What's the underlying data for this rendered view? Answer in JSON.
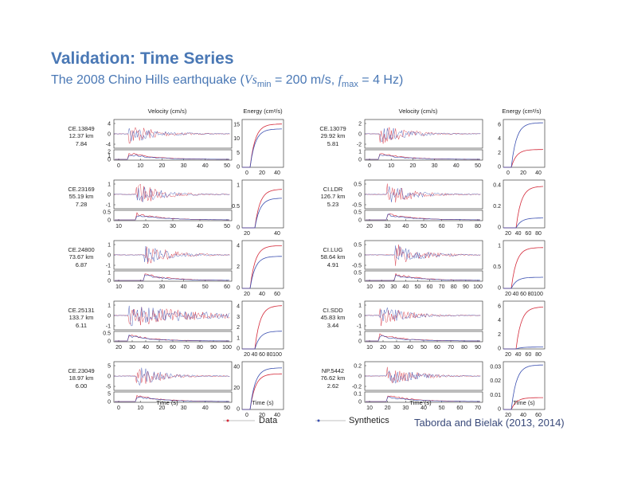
{
  "slide": {
    "title": "Validation: Time Series",
    "subtitle": {
      "prefix": "The 2008 Chino Hills earthquake (",
      "vs": "Vs",
      "vs_sub": "min",
      "vs_value": " = 200 m/s, ",
      "f": "f",
      "f_sub": "max",
      "f_value": " = 4 Hz)"
    },
    "credit": "Taborda and Bielak (2013, 2014)"
  },
  "colors": {
    "data": "#d42a3a",
    "synthetics": "#3a4fb0",
    "axis": "#222222"
  },
  "chart_data": {
    "type": "line",
    "column_headers": {
      "velocity": "Velocity (cm/s)",
      "energy": "Energy (cm²/s)"
    },
    "x_axis_label": "Time (s)",
    "legend": {
      "placement": "bottom",
      "entries": [
        "Data",
        "Synthetics"
      ]
    },
    "stations": [
      {
        "name": "CE.13849",
        "distance": "12.37 km",
        "value": "7.84",
        "vel_ticks": [
          "4",
          "0",
          "-4"
        ],
        "env_ticks": [
          "2",
          "1",
          "0"
        ],
        "time_ticks": [
          "0",
          "10",
          "20",
          "30",
          "40",
          "50"
        ],
        "xlim": [
          0,
          50
        ],
        "energy_ticks": [
          "15",
          "10",
          "5",
          "0"
        ],
        "energy_ymax": 18,
        "energy_x_ticks": [
          "0",
          "20",
          "40"
        ],
        "energy_xlim": [
          0,
          50
        ],
        "energy_data_final": 17.5,
        "energy_synth_final": 15.5
      },
      {
        "name": "CE.23169",
        "distance": "55.19 km",
        "value": "7.28",
        "vel_ticks": [
          "1",
          "0",
          "-1"
        ],
        "env_ticks": [
          "0.5",
          "0"
        ],
        "time_ticks": [
          "10",
          "20",
          "30",
          "40",
          "50"
        ],
        "xlim": [
          5,
          55
        ],
        "energy_ticks": [
          "1",
          "0.5",
          "0"
        ],
        "energy_ymax": 1.5,
        "energy_x_ticks": [
          "20",
          "40"
        ],
        "energy_xlim": [
          0,
          55
        ],
        "energy_data_final": 1.3,
        "energy_synth_final": 1.0
      },
      {
        "name": "CE.24800",
        "distance": "73.67 km",
        "value": "6.87",
        "vel_ticks": [
          "1",
          "0",
          "-1"
        ],
        "env_ticks": [
          "1",
          "0"
        ],
        "time_ticks": [
          "10",
          "20",
          "30",
          "40",
          "50",
          "60"
        ],
        "xlim": [
          10,
          70
        ],
        "energy_ticks": [
          "4",
          "2",
          "0"
        ],
        "energy_ymax": 5,
        "energy_x_ticks": [
          "20",
          "40",
          "60"
        ],
        "energy_xlim": [
          0,
          70
        ],
        "energy_data_final": 4.8,
        "energy_synth_final": 3.6
      },
      {
        "name": "CE.25131",
        "distance": "133.7 km",
        "value": "6.11",
        "vel_ticks": [
          "1",
          "0",
          "-1"
        ],
        "env_ticks": [
          "0.5",
          "0"
        ],
        "time_ticks": [
          "20",
          "30",
          "40",
          "50",
          "60",
          "70",
          "80",
          "90",
          "100"
        ],
        "xlim": [
          15,
          105
        ],
        "energy_ticks": [
          "4",
          "3",
          "2",
          "1",
          "0"
        ],
        "energy_ymax": 4,
        "energy_x_ticks": [
          "20",
          "40",
          "60",
          "80",
          "100"
        ],
        "energy_xlim": [
          0,
          105
        ],
        "energy_data_final": 3.9,
        "energy_synth_final": 1.6
      },
      {
        "name": "CE.23049",
        "distance": "18.97 km",
        "value": "6.00",
        "vel_ticks": [
          "5",
          "0",
          "-5"
        ],
        "env_ticks": [
          "5",
          "0"
        ],
        "time_ticks": [
          "0",
          "10",
          "20",
          "30",
          "40",
          "50"
        ],
        "xlim": [
          0,
          50
        ],
        "energy_ticks": [
          "40",
          "20",
          "0"
        ],
        "energy_ymax": 45,
        "energy_x_ticks": [
          "0",
          "20",
          "40"
        ],
        "energy_xlim": [
          0,
          50
        ],
        "energy_data_final": 36,
        "energy_synth_final": 42
      },
      {
        "name": "CE.13079",
        "distance": "29.92 km",
        "value": "5.81",
        "vel_ticks": [
          "2",
          "0",
          "-2"
        ],
        "env_ticks": [
          "1",
          "0"
        ],
        "time_ticks": [
          "0",
          "10",
          "20",
          "30",
          "40",
          "50"
        ],
        "xlim": [
          0,
          50
        ],
        "energy_ticks": [
          "6",
          "4",
          "2",
          "0"
        ],
        "energy_ymax": 7,
        "energy_x_ticks": [
          "0",
          "20",
          "40"
        ],
        "energy_xlim": [
          0,
          50
        ],
        "energy_data_final": 2.8,
        "energy_synth_final": 7.0
      },
      {
        "name": "CI.LDR",
        "distance": "126.7 km",
        "value": "5.23",
        "vel_ticks": [
          "0.5",
          "0",
          "-0.5"
        ],
        "env_ticks": [
          "0.5",
          "0"
        ],
        "time_ticks": [
          "20",
          "30",
          "40",
          "50",
          "60",
          "70",
          "80"
        ],
        "xlim": [
          15,
          85
        ],
        "energy_ticks": [
          "0.4",
          "0.2",
          "0"
        ],
        "energy_ymax": 0.45,
        "energy_x_ticks": [
          "20",
          "40",
          "60",
          "80"
        ],
        "energy_xlim": [
          0,
          85
        ],
        "energy_data_final": 0.42,
        "energy_synth_final": 0.1
      },
      {
        "name": "CI.LUG",
        "distance": "58.64 km",
        "value": "4.91",
        "vel_ticks": [
          "0.5",
          "0",
          "-0.5"
        ],
        "env_ticks": [
          "0.5",
          "0"
        ],
        "time_ticks": [
          "10",
          "20",
          "30",
          "40",
          "50",
          "60",
          "70",
          "80",
          "90",
          "100"
        ],
        "xlim": [
          5,
          105
        ],
        "energy_ticks": [
          "1",
          "0.5",
          "0"
        ],
        "energy_ymax": 1.2,
        "energy_x_ticks": [
          "20",
          "40",
          "60",
          "80",
          "100"
        ],
        "energy_xlim": [
          0,
          105
        ],
        "energy_data_final": 1.1,
        "energy_synth_final": 0.3
      },
      {
        "name": "CI.SDD",
        "distance": "45.83 km",
        "value": "3.44",
        "vel_ticks": [
          "1",
          "0",
          "-1"
        ],
        "env_ticks": [
          "1",
          "0"
        ],
        "time_ticks": [
          "10",
          "20",
          "30",
          "40",
          "50",
          "60",
          "70",
          "80",
          "90"
        ],
        "xlim": [
          5,
          95
        ],
        "energy_ticks": [
          "6",
          "4",
          "2",
          "0"
        ],
        "energy_ymax": 7,
        "energy_x_ticks": [
          "20",
          "40",
          "60",
          "80"
        ],
        "energy_xlim": [
          0,
          95
        ],
        "energy_data_final": 6.6,
        "energy_synth_final": 0.3
      },
      {
        "name": "NP.5442",
        "distance": "76.62 km",
        "value": "2.62",
        "vel_ticks": [
          "0.2",
          "0",
          "-0.2"
        ],
        "env_ticks": [
          "0.1",
          "0"
        ],
        "time_ticks": [
          "10",
          "20",
          "30",
          "40",
          "50",
          "60",
          "70"
        ],
        "xlim": [
          5,
          75
        ],
        "energy_ticks": [
          "0.03",
          "0.02",
          "0.01",
          "0"
        ],
        "energy_ymax": 0.03,
        "energy_x_ticks": [
          "20",
          "40",
          "60"
        ],
        "energy_xlim": [
          0,
          75
        ],
        "energy_data_final": 0.008,
        "energy_synth_final": 0.03
      }
    ]
  }
}
